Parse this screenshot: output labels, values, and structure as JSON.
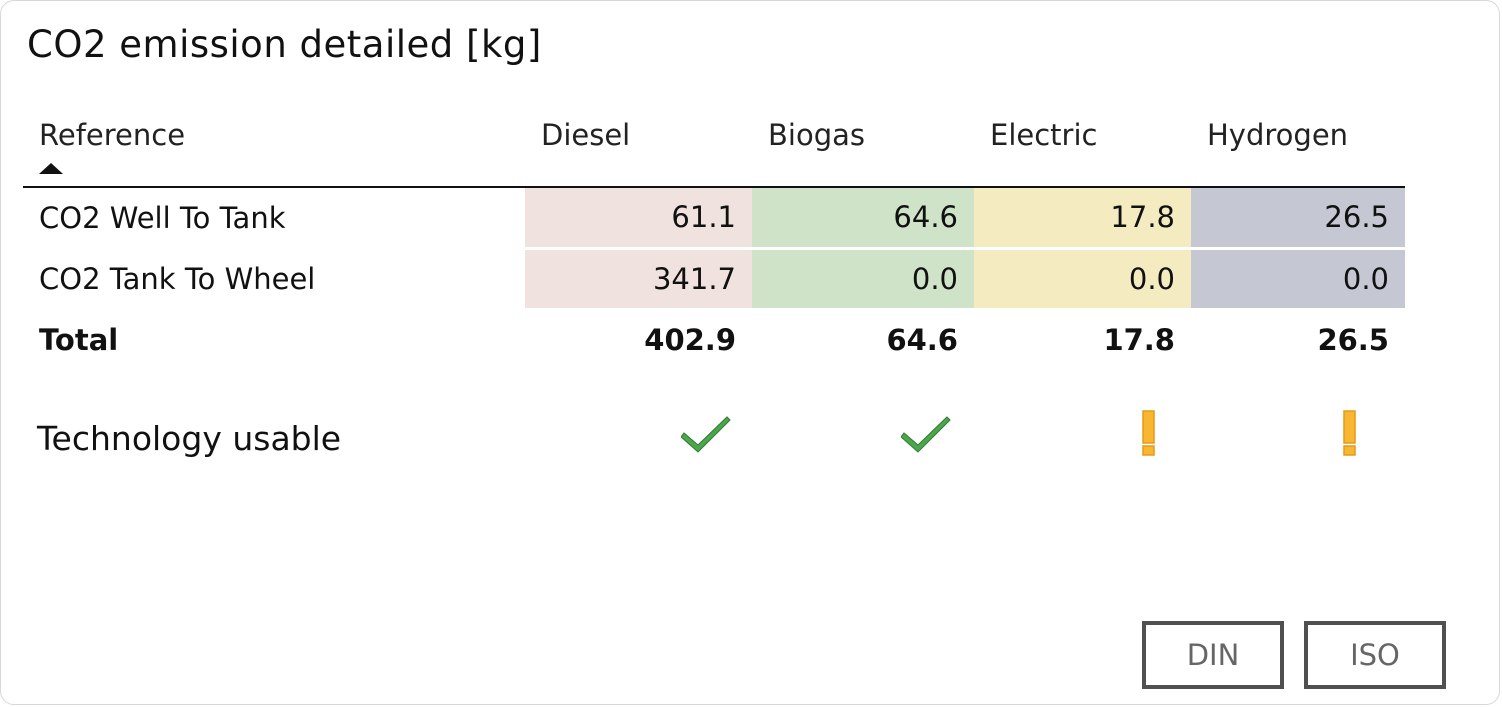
{
  "title": "CO2 emission detailed [kg]",
  "columns": [
    "Reference",
    "Diesel",
    "Biogas",
    "Electric",
    "Hydrogen"
  ],
  "sort": {
    "column": "Reference",
    "direction": "ascending"
  },
  "rows": [
    {
      "label": "CO2 Well To Tank",
      "values": [
        "61.1",
        "64.6",
        "17.8",
        "26.5"
      ]
    },
    {
      "label": "CO2 Tank To Wheel",
      "values": [
        "341.7",
        "0.0",
        "0.0",
        "0.0"
      ]
    }
  ],
  "total": {
    "label": "Total",
    "values": [
      "402.9",
      "64.6",
      "17.8",
      "26.5"
    ]
  },
  "column_colors": [
    "#f0e2df",
    "#cfe3c9",
    "#f4ebc1",
    "#c5c8d3"
  ],
  "usable": {
    "label": "Technology usable",
    "statuses": [
      {
        "technology": "Diesel",
        "icon": "checkmark-icon",
        "color": "#4ca64c"
      },
      {
        "technology": "Biogas",
        "icon": "checkmark-icon",
        "color": "#4ca64c"
      },
      {
        "technology": "Electric",
        "icon": "warning-icon",
        "color": "#f7b733"
      },
      {
        "technology": "Hydrogen",
        "icon": "warning-icon",
        "color": "#f7b733"
      }
    ]
  },
  "buttons": {
    "din": "DIN",
    "iso": "ISO"
  }
}
